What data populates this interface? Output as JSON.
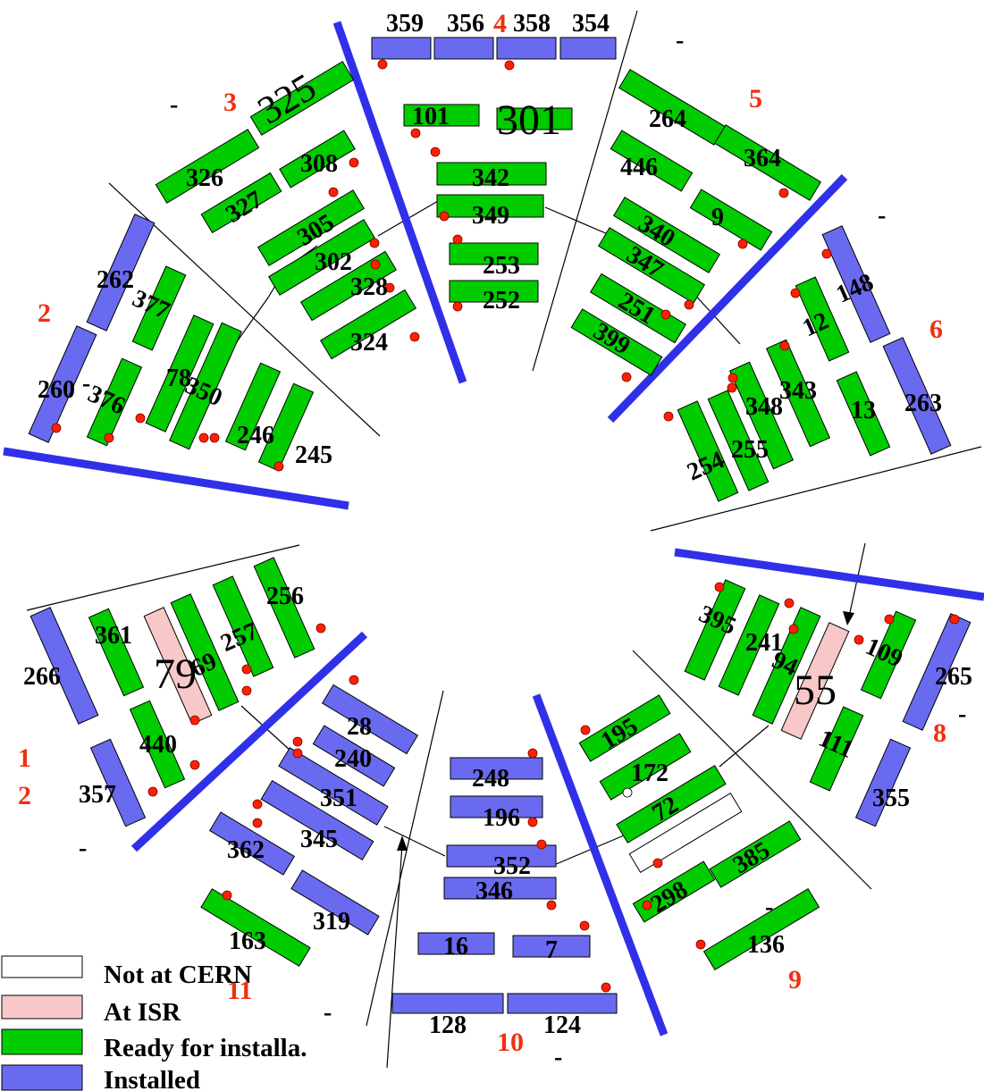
{
  "legend": {
    "items": [
      {
        "status": "notcern",
        "label": "Not at  CERN"
      },
      {
        "status": "isr",
        "label": "At ISR"
      },
      {
        "status": "ready",
        "label": "Ready for installa."
      },
      {
        "status": "installed",
        "label": "Installed"
      }
    ]
  },
  "colors": {
    "installed": "#6a6af0",
    "ready": "#00cc00",
    "isr": "#f8c8c8",
    "notcern": "#ffffff",
    "sector_number": "#f03010",
    "dot": "#ff2000",
    "sector_boundary": "#3030e8"
  },
  "sector_labels": [
    "1",
    "2",
    "2",
    "3",
    "4",
    "5",
    "6",
    "8",
    "9",
    "10",
    "11"
  ],
  "dashes": [
    "-",
    "-",
    "-",
    "-",
    "-",
    "-",
    "-",
    "-",
    "-",
    "-",
    "-"
  ],
  "chambers": [
    {
      "label": "359",
      "status": "installed"
    },
    {
      "label": "356",
      "status": "installed"
    },
    {
      "label": "358",
      "status": "installed"
    },
    {
      "label": "354",
      "status": "installed"
    },
    {
      "label": "101",
      "status": "ready"
    },
    {
      "label": "301",
      "status": "ready"
    },
    {
      "label": "342",
      "status": "ready"
    },
    {
      "label": "349",
      "status": "ready"
    },
    {
      "label": "253",
      "status": "ready"
    },
    {
      "label": "252",
      "status": "ready"
    },
    {
      "label": "325",
      "status": "ready"
    },
    {
      "label": "326",
      "status": "ready"
    },
    {
      "label": "308",
      "status": "ready"
    },
    {
      "label": "327",
      "status": "ready"
    },
    {
      "label": "305",
      "status": "ready"
    },
    {
      "label": "302",
      "status": "ready"
    },
    {
      "label": "328",
      "status": "ready"
    },
    {
      "label": "324",
      "status": "ready"
    },
    {
      "label": "264",
      "status": "ready"
    },
    {
      "label": "364",
      "status": "ready"
    },
    {
      "label": "446",
      "status": "ready"
    },
    {
      "label": "9",
      "status": "ready"
    },
    {
      "label": "340",
      "status": "ready"
    },
    {
      "label": "347",
      "status": "ready"
    },
    {
      "label": "251",
      "status": "ready"
    },
    {
      "label": "399",
      "status": "ready"
    },
    {
      "label": "262",
      "status": "installed"
    },
    {
      "label": "260",
      "status": "installed"
    },
    {
      "label": "377",
      "status": "ready"
    },
    {
      "label": "376",
      "status": "ready"
    },
    {
      "label": "78",
      "status": "ready"
    },
    {
      "label": "350",
      "status": "ready"
    },
    {
      "label": "246",
      "status": "ready"
    },
    {
      "label": "245",
      "status": "ready"
    },
    {
      "label": "148",
      "status": "installed"
    },
    {
      "label": "263",
      "status": "installed"
    },
    {
      "label": "12",
      "status": "ready"
    },
    {
      "label": "343",
      "status": "ready"
    },
    {
      "label": "348",
      "status": "ready"
    },
    {
      "label": "13",
      "status": "ready"
    },
    {
      "label": "254",
      "status": "ready"
    },
    {
      "label": "255",
      "status": "ready"
    },
    {
      "label": "266",
      "status": "installed"
    },
    {
      "label": "357",
      "status": "installed"
    },
    {
      "label": "361",
      "status": "ready"
    },
    {
      "label": "79",
      "status": "isr"
    },
    {
      "label": "69",
      "status": "ready"
    },
    {
      "label": "257",
      "status": "ready"
    },
    {
      "label": "256",
      "status": "ready"
    },
    {
      "label": "440",
      "status": "ready"
    },
    {
      "label": "395",
      "status": "ready"
    },
    {
      "label": "241",
      "status": "ready"
    },
    {
      "label": "94",
      "status": "ready"
    },
    {
      "label": "55",
      "status": "isr"
    },
    {
      "label": "109",
      "status": "ready"
    },
    {
      "label": "265",
      "status": "installed"
    },
    {
      "label": "111",
      "status": "ready"
    },
    {
      "label": "355",
      "status": "installed"
    },
    {
      "label": "195",
      "status": "ready"
    },
    {
      "label": "172",
      "status": "ready"
    },
    {
      "label": "72",
      "status": "ready"
    },
    {
      "label": "",
      "status": "notcern"
    },
    {
      "label": "385",
      "status": "ready"
    },
    {
      "label": "298",
      "status": "ready"
    },
    {
      "label": "136",
      "status": "ready"
    },
    {
      "label": "248",
      "status": "installed"
    },
    {
      "label": "196",
      "status": "installed"
    },
    {
      "label": "352",
      "status": "installed"
    },
    {
      "label": "346",
      "status": "installed"
    },
    {
      "label": "16",
      "status": "installed"
    },
    {
      "label": "7",
      "status": "installed"
    },
    {
      "label": "128",
      "status": "installed"
    },
    {
      "label": "124",
      "status": "installed"
    },
    {
      "label": "28",
      "status": "installed"
    },
    {
      "label": "240",
      "status": "installed"
    },
    {
      "label": "351",
      "status": "installed"
    },
    {
      "label": "345",
      "status": "installed"
    },
    {
      "label": "362",
      "status": "installed"
    },
    {
      "label": "319",
      "status": "installed"
    },
    {
      "label": "163",
      "status": "ready"
    }
  ]
}
